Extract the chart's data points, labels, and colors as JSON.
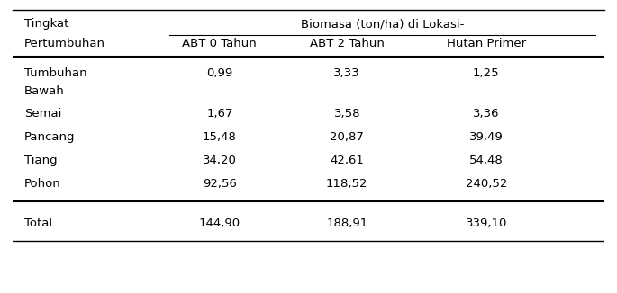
{
  "header_row1_col1": "Tingkat",
  "header_row1_col2": "Biomasa (ton/ha) di Lokasi-",
  "header_row2_col1": "Pertumbuhan",
  "header_row2_col2": "ABT 0 Tahun",
  "header_row2_col3": "ABT 2 Tahun",
  "header_row2_col4": "Hutan Primer",
  "rows": [
    [
      "Tumbuhan",
      "Bawah",
      "0,99",
      "3,33",
      "1,25"
    ],
    [
      "Semai",
      "",
      "1,67",
      "3,58",
      "3,36"
    ],
    [
      "Pancang",
      "",
      "15,48",
      "20,87",
      "39,49"
    ],
    [
      "Tiang",
      "",
      "34,20",
      "42,61",
      "54,48"
    ],
    [
      "Pohon",
      "",
      "92,56",
      "118,52",
      "240,52"
    ]
  ],
  "total_row": [
    "Total",
    "144,90",
    "188,91",
    "339,10"
  ],
  "font_size": 9.5,
  "bg_color": "#ffffff",
  "text_color": "#000000",
  "line_color": "#000000"
}
